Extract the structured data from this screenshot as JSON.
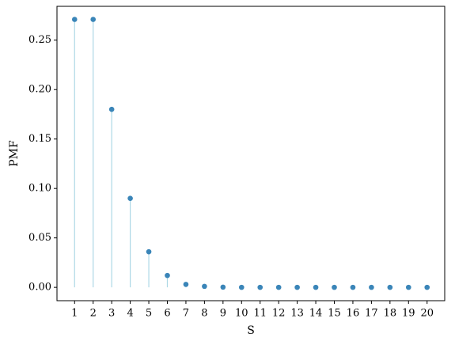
{
  "chart_data": {
    "type": "stem",
    "x_label": "S",
    "y_label": "PMF",
    "x": [
      1,
      2,
      3,
      4,
      5,
      6,
      7,
      8,
      9,
      10,
      11,
      12,
      13,
      14,
      15,
      16,
      17,
      18,
      19,
      20
    ],
    "values": [
      0.271,
      0.271,
      0.18,
      0.09,
      0.036,
      0.012,
      0.003,
      0.001,
      0.0002,
      0,
      0,
      0,
      0,
      0,
      0,
      0,
      0,
      0,
      0,
      0
    ],
    "color": "#3a85b8",
    "stem_color": "#add8e6",
    "xlim": [
      0.05,
      20.95
    ],
    "ylim": [
      -0.0135,
      0.2842
    ],
    "xticks": [
      1,
      2,
      3,
      4,
      5,
      6,
      7,
      8,
      9,
      10,
      11,
      12,
      13,
      14,
      15,
      16,
      17,
      18,
      19,
      20
    ],
    "yticks": [
      {
        "value": 0,
        "label": "0.00"
      },
      {
        "value": 0.05,
        "label": "0.05"
      },
      {
        "value": 0.1,
        "label": "0.10"
      },
      {
        "value": 0.15,
        "label": "0.15"
      },
      {
        "value": 0.2,
        "label": "0.20"
      },
      {
        "value": 0.25,
        "label": "0.25"
      }
    ]
  }
}
